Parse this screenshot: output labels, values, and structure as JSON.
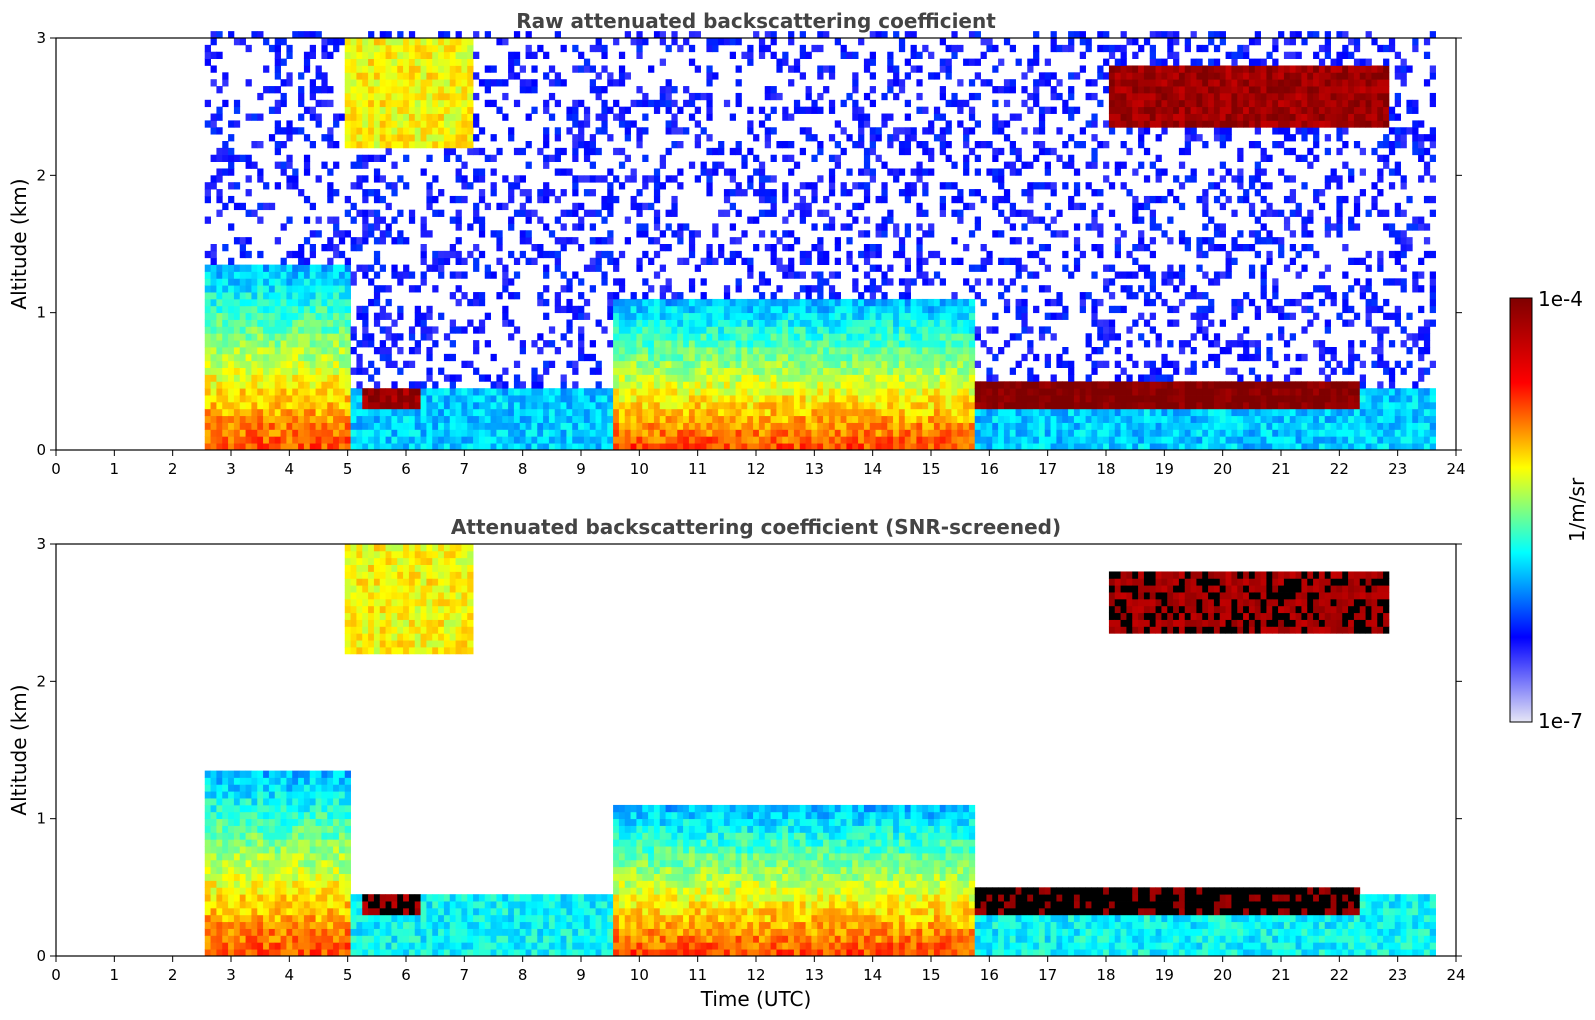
{
  "chart_data": [
    {
      "type": "heatmap",
      "title": "Raw attenuated backscattering coefficient",
      "xlabel": "",
      "ylabel": "Altitude (km)",
      "xlim": [
        0,
        24
      ],
      "ylim": [
        0,
        3
      ],
      "x_ticks": [
        "0",
        "1",
        "2",
        "3",
        "4",
        "5",
        "6",
        "7",
        "8",
        "9",
        "10",
        "11",
        "12",
        "13",
        "14",
        "15",
        "16",
        "17",
        "18",
        "19",
        "20",
        "21",
        "22",
        "23",
        "24"
      ],
      "y_ticks": [
        "0",
        "1",
        "2",
        "3"
      ],
      "data_start_time": 2.55,
      "data_end_time": 23.65,
      "screened": false,
      "features": [
        {
          "name": "surface aerosol layer",
          "start": 2.55,
          "end": 5.0,
          "top_km": 1.35,
          "level": 0.75
        },
        {
          "name": "high cloud",
          "start": 4.9,
          "end": 7.1,
          "base_km": 2.2,
          "top_km": 3.0,
          "level": 0.6
        },
        {
          "name": "low cloud",
          "start": 5.2,
          "end": 6.2,
          "base_km": 0.3,
          "top_km": 0.45,
          "level": 0.95
        },
        {
          "name": "convective boundary layer",
          "start": 9.5,
          "end": 15.7,
          "top_km": 1.1,
          "level": 0.75
        },
        {
          "name": "stratocumulus deck",
          "start": 15.7,
          "end": 22.4,
          "base_km": 0.3,
          "top_km": 0.5,
          "level": 1.0
        },
        {
          "name": "elevated cloud",
          "start": 18.0,
          "end": 22.9,
          "base_km": 2.35,
          "top_km": 2.8,
          "level": 0.95
        }
      ]
    },
    {
      "type": "heatmap",
      "title": "Attenuated backscattering coefficient (SNR-screened)",
      "xlabel": "Time (UTC)",
      "ylabel": "Altitude (km)",
      "xlim": [
        0,
        24
      ],
      "ylim": [
        0,
        3
      ],
      "x_ticks": [
        "0",
        "1",
        "2",
        "3",
        "4",
        "5",
        "6",
        "7",
        "8",
        "9",
        "10",
        "11",
        "12",
        "13",
        "14",
        "15",
        "16",
        "17",
        "18",
        "19",
        "20",
        "21",
        "22",
        "23",
        "24"
      ],
      "y_ticks": [
        "0",
        "1",
        "2",
        "3"
      ],
      "data_start_time": 2.55,
      "data_end_time": 23.65,
      "screened": true,
      "features": [
        {
          "name": "surface aerosol layer",
          "start": 2.55,
          "end": 5.0,
          "top_km": 1.35,
          "level": 0.75
        },
        {
          "name": "high cloud",
          "start": 4.9,
          "end": 7.1,
          "base_km": 2.2,
          "top_km": 3.0,
          "level": 0.6
        },
        {
          "name": "low cloud",
          "start": 5.2,
          "end": 6.2,
          "base_km": 0.3,
          "top_km": 0.45,
          "level": 0.95
        },
        {
          "name": "convective boundary layer",
          "start": 9.5,
          "end": 15.7,
          "top_km": 1.1,
          "level": 0.75
        },
        {
          "name": "stratocumulus deck",
          "start": 15.7,
          "end": 22.4,
          "base_km": 0.3,
          "top_km": 0.5,
          "level": 1.0
        },
        {
          "name": "elevated cloud",
          "start": 18.0,
          "end": 22.9,
          "base_km": 2.35,
          "top_km": 2.8,
          "level": 0.95
        }
      ]
    }
  ],
  "colorbar": {
    "label": "1/m/sr",
    "max_label": "1e-4",
    "min_label": "1e-7",
    "colors": [
      "#e6e6f5",
      "#0000ff",
      "#00ffff",
      "#ffff00",
      "#ff0000",
      "#7f0000"
    ]
  }
}
